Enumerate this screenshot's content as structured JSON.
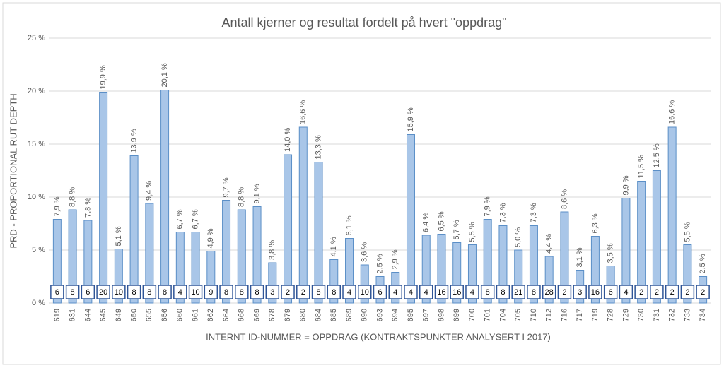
{
  "chart_data": {
    "type": "bar",
    "title": "Antall kjerner og resultat fordelt på hvert \"oppdrag\"",
    "y_label": "PRD - PROPORTIONAL RUT DEPTH",
    "x_label": "INTERNT ID-NUMMER = OPPDRAG (KONTRAKTSPUNKTER ANALYSERT I 2017)",
    "categories": [
      "619",
      "631",
      "644",
      "645",
      "649",
      "650",
      "655",
      "656",
      "660",
      "661",
      "662",
      "664",
      "668",
      "669",
      "678",
      "679",
      "680",
      "684",
      "685",
      "689",
      "690",
      "693",
      "694",
      "695",
      "697",
      "698",
      "699",
      "700",
      "701",
      "704",
      "705",
      "710",
      "712",
      "716",
      "717",
      "719",
      "728",
      "729",
      "730",
      "731",
      "732",
      "733",
      "734"
    ],
    "values": [
      7.9,
      8.8,
      7.8,
      19.9,
      5.1,
      13.9,
      9.4,
      20.1,
      6.7,
      6.7,
      4.9,
      9.7,
      8.8,
      9.1,
      3.8,
      14.0,
      16.6,
      13.3,
      4.1,
      6.1,
      3.6,
      2.5,
      2.9,
      15.9,
      6.4,
      6.5,
      5.7,
      5.5,
      7.9,
      7.3,
      5.0,
      7.3,
      4.4,
      8.6,
      3.1,
      6.3,
      3.5,
      9.9,
      11.5,
      12.5,
      16.6,
      5.5,
      2.5
    ],
    "value_labels": [
      "7,9 %",
      "8,8 %",
      "7,8 %",
      "19,9 %",
      "5,1 %",
      "13,9 %",
      "9,4 %",
      "20,1 %",
      "6,7 %",
      "6,7 %",
      "4,9 %",
      "9,7 %",
      "8,8 %",
      "9,1 %",
      "3,8 %",
      "14,0 %",
      "16,6 %",
      "13,3 %",
      "4,1 %",
      "6,1 %",
      "3,6 %",
      "2,5 %",
      "2,9 %",
      "15,9 %",
      "6,4 %",
      "6,5 %",
      "5,7 %",
      "5,5 %",
      "7,9 %",
      "7,3 %",
      "5,0 %",
      "7,3 %",
      "4,4 %",
      "8,6 %",
      "3,1 %",
      "6,3 %",
      "3,5 %",
      "9,9 %",
      "11,5 %",
      "12,5 %",
      "16,6 %",
      "5,5 %",
      "2,5 %"
    ],
    "cores": [
      6,
      8,
      6,
      20,
      10,
      8,
      8,
      8,
      4,
      10,
      9,
      8,
      8,
      8,
      3,
      2,
      2,
      8,
      8,
      4,
      10,
      6,
      4,
      4,
      4,
      16,
      16,
      4,
      8,
      8,
      21,
      8,
      28,
      2,
      3,
      16,
      6,
      4,
      2,
      2,
      2,
      2,
      2
    ],
    "color": "#a9c6e8",
    "edge_color": "#5b8fc7",
    "box_color": "#2f5597",
    "ylim": [
      0,
      25
    ],
    "yticks": [
      {
        "value": 0,
        "label": "0 %"
      },
      {
        "value": 5,
        "label": "5 %"
      },
      {
        "value": 10,
        "label": "10 %"
      },
      {
        "value": 15,
        "label": "15 %"
      },
      {
        "value": 20,
        "label": "20 %"
      },
      {
        "value": 25,
        "label": "25 %"
      }
    ],
    "grid": true
  }
}
